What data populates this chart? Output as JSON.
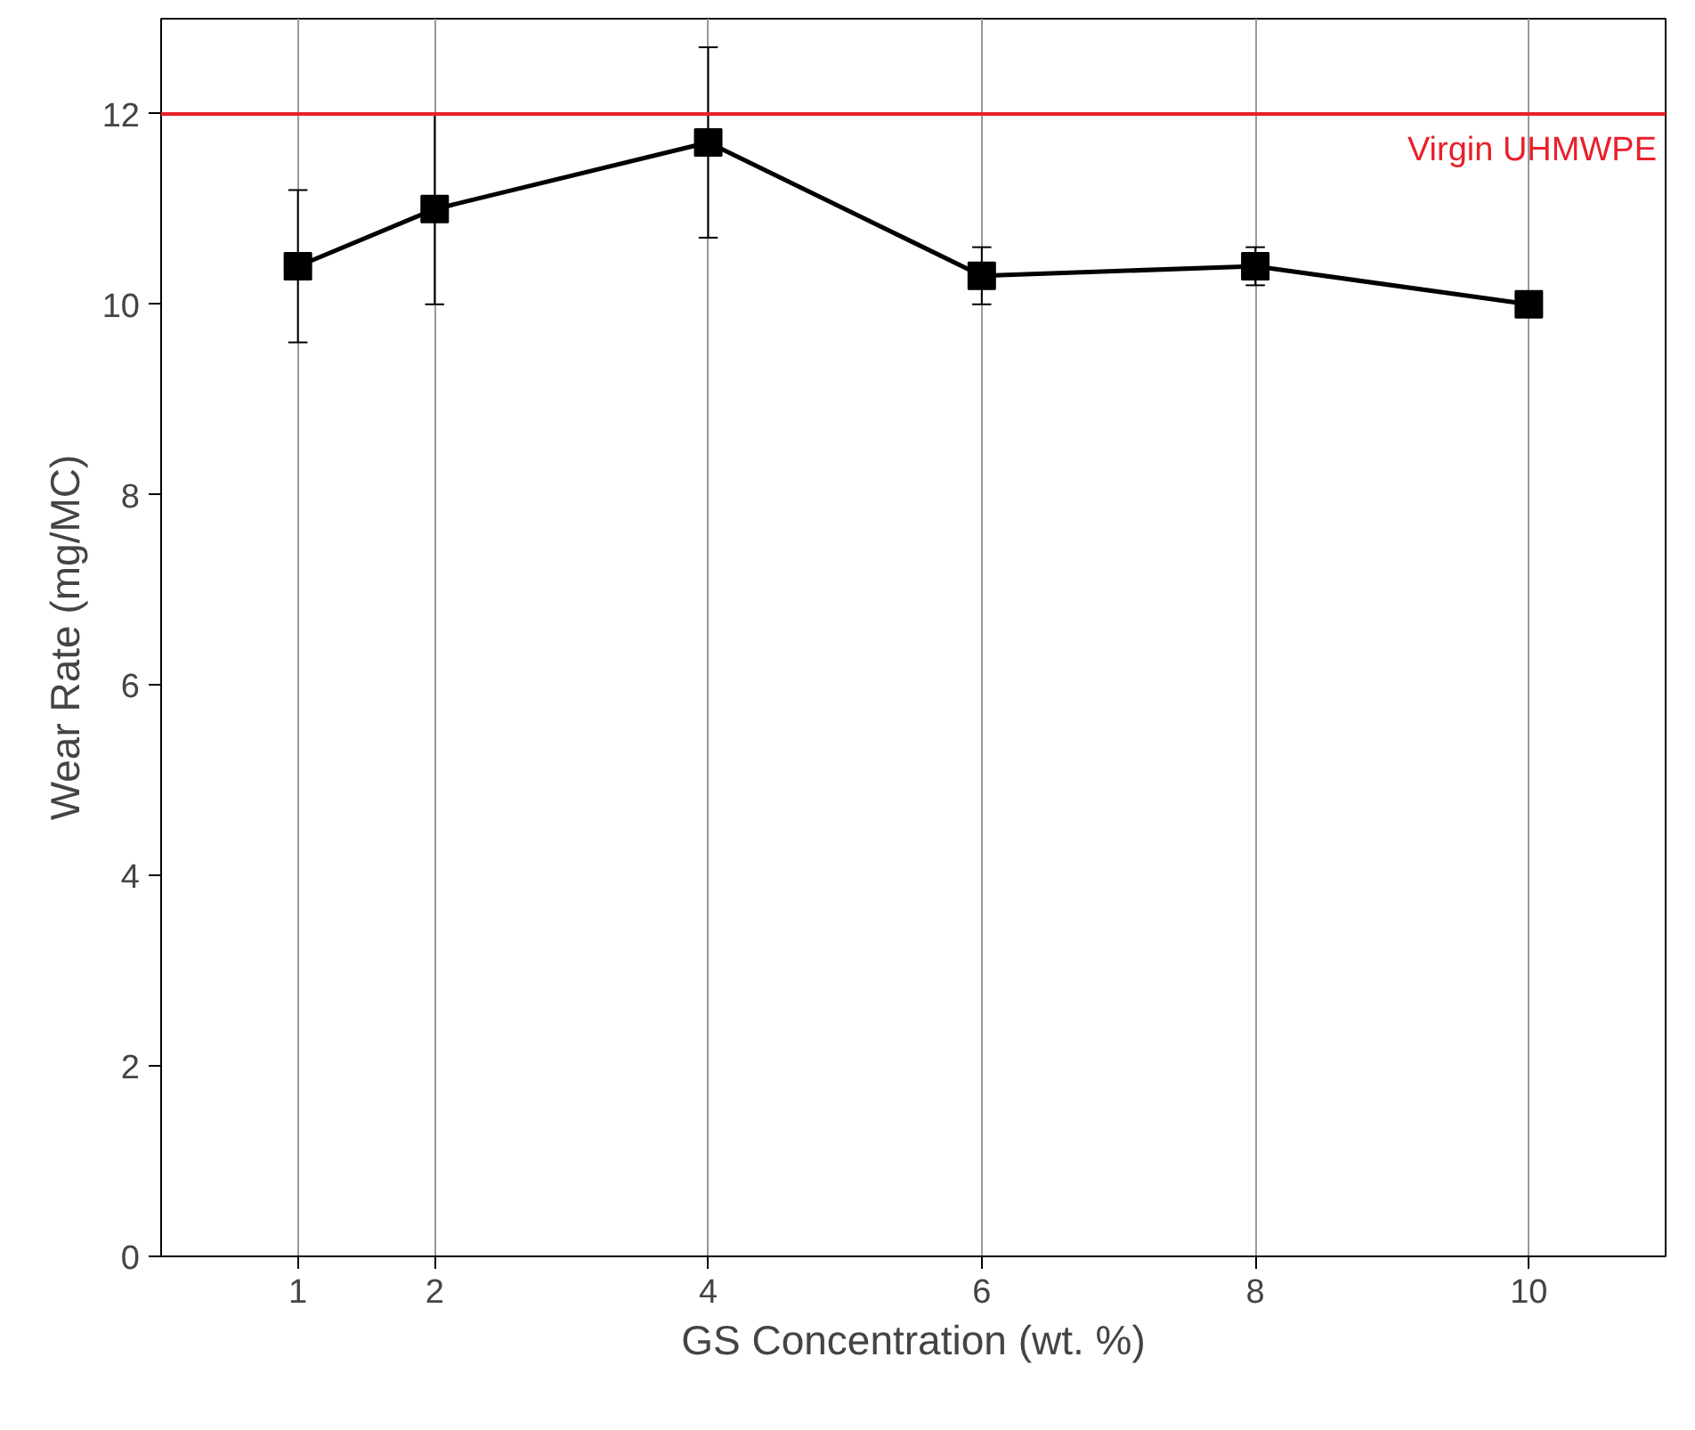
{
  "chart_data": {
    "type": "line",
    "xlabel": "GS Concentration (wt. %)",
    "ylabel": "Wear Rate (mg/MC)",
    "x": [
      1,
      2,
      4,
      6,
      8,
      10
    ],
    "series": [
      {
        "color": "#000000",
        "values": [
          10.4,
          11.0,
          11.7,
          10.3,
          10.4,
          10.0
        ],
        "errors": [
          0.8,
          1.0,
          1.0,
          0.3,
          0.2,
          null
        ]
      }
    ],
    "xlim": [
      0,
      11
    ],
    "xticks": [
      1,
      2,
      4,
      6,
      8,
      10
    ],
    "ylim": [
      0,
      13
    ],
    "yticks": [
      0,
      2,
      4,
      6,
      8,
      10,
      12
    ],
    "grid": "x",
    "marker": "square",
    "line_style": "solid",
    "ref_lines": [
      {
        "axis": "y",
        "value": 12,
        "label": "Virgin UHMWPE",
        "color": "#e8202a"
      }
    ]
  }
}
